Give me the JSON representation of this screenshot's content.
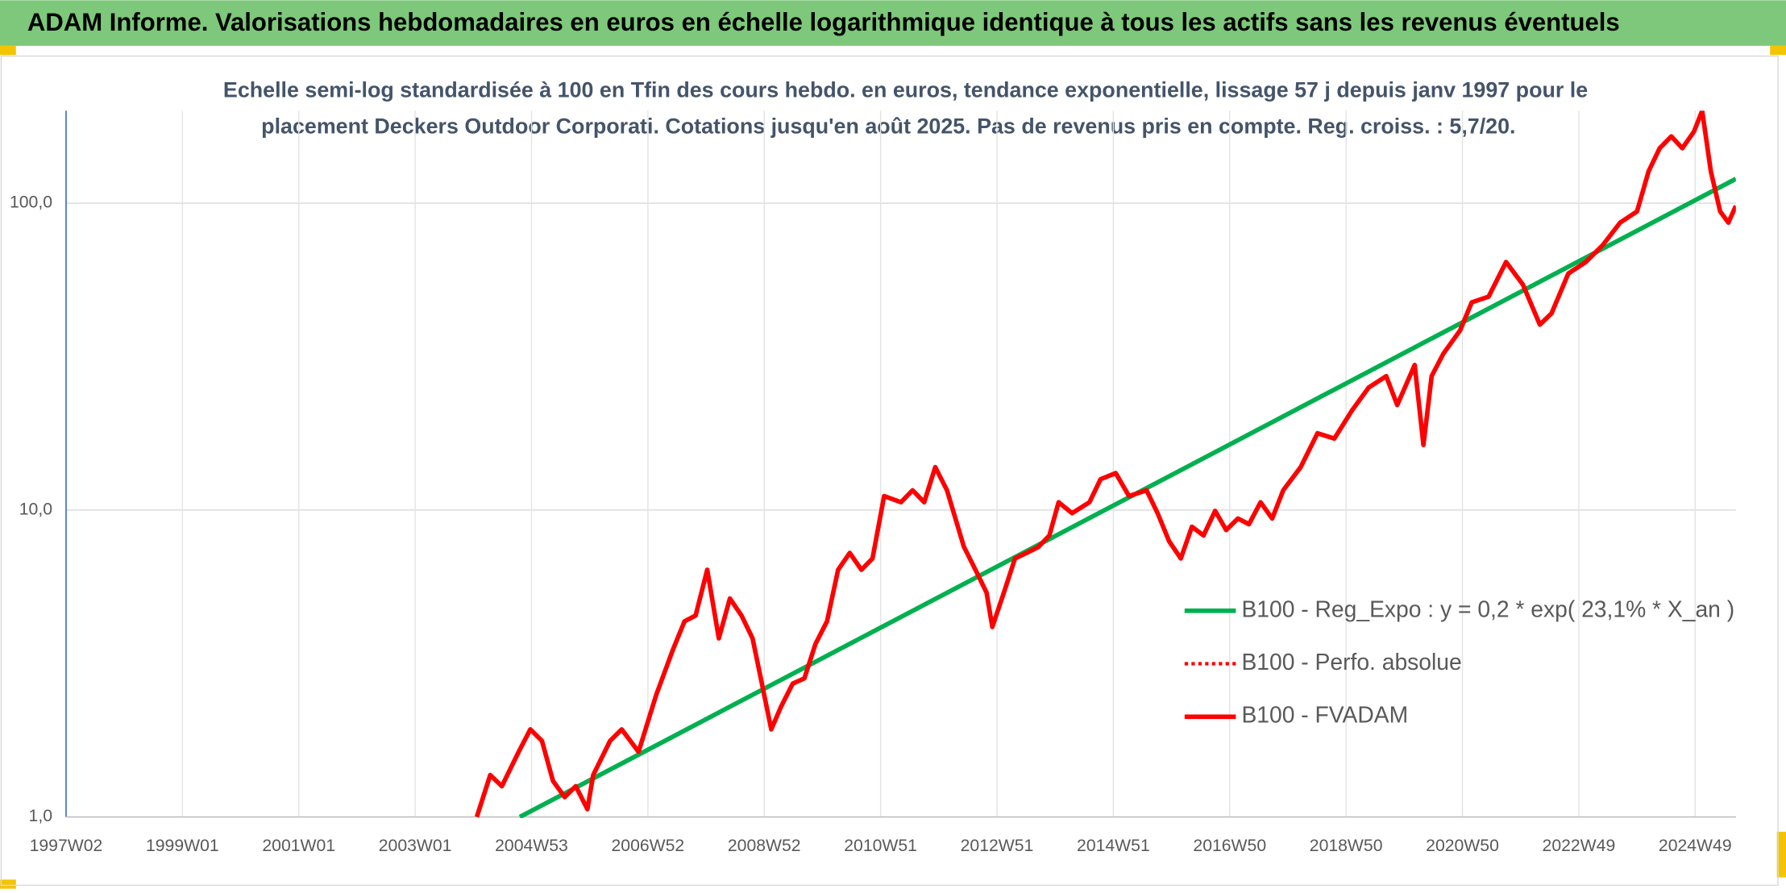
{
  "header": {
    "title": "ADAM Informe. Valorisations hebdomadaires en euros en échelle logarithmique identique à tous les actifs sans les revenus éventuels"
  },
  "chart_data": {
    "type": "line",
    "subtitle": [
      "Echelle semi-log standardisée à 100 en Tfin des cours hebdo. en euros, tendance exponentielle, lissage 57 j depuis janv 1997 pour le",
      "placement Deckers Outdoor Corporati. Cotations jusqu'en août 2025. Pas de revenus pris en compte. Reg. croiss. : 5,7/20."
    ],
    "log_y": true,
    "grid": true,
    "ylim": [
      1,
      200
    ],
    "yticks": [
      {
        "value": 1,
        "label": "1,0"
      },
      {
        "value": 10,
        "label": "10,0"
      },
      {
        "value": 100,
        "label": "100,0"
      }
    ],
    "xlim": [
      1997.0,
      2025.7
    ],
    "xticks": [
      {
        "value": 1997,
        "label": "1997W02"
      },
      {
        "value": 1999,
        "label": "1999W01"
      },
      {
        "value": 2001,
        "label": "2001W01"
      },
      {
        "value": 2003,
        "label": "2003W01"
      },
      {
        "value": 2005,
        "label": "2004W53"
      },
      {
        "value": 2007,
        "label": "2006W52"
      },
      {
        "value": 2009,
        "label": "2008W52"
      },
      {
        "value": 2011,
        "label": "2010W51"
      },
      {
        "value": 2013,
        "label": "2012W51"
      },
      {
        "value": 2015,
        "label": "2014W51"
      },
      {
        "value": 2017,
        "label": "2016W50"
      },
      {
        "value": 2019,
        "label": "2018W50"
      },
      {
        "value": 2021,
        "label": "2020W50"
      },
      {
        "value": 2023,
        "label": "2022W49"
      },
      {
        "value": 2025,
        "label": "2024W49"
      }
    ],
    "series": [
      {
        "name": "B100 - Reg_Expo : y = 0,2 * exp( 23,1% *  X_an )",
        "color": "#00b050",
        "x": [
          2004.8,
          2025.7
        ],
        "values": [
          1.0,
          120
        ]
      },
      {
        "name": "B100 - Perfo. absolue",
        "color": "#ff0000",
        "dash": "dotted"
      },
      {
        "name": "B100 - FVADAM",
        "color": "#ff0000",
        "x": [
          2004.06,
          2004.29,
          2004.49,
          2004.78,
          2004.98,
          2005.18,
          2005.37,
          2005.57,
          2005.76,
          2005.96,
          2006.06,
          2006.35,
          2006.55,
          2006.84,
          2007.14,
          2007.43,
          2007.63,
          2007.82,
          2008.02,
          2008.22,
          2008.41,
          2008.61,
          2008.8,
          2008.96,
          2009.12,
          2009.29,
          2009.49,
          2009.69,
          2009.88,
          2010.08,
          2010.27,
          2010.47,
          2010.67,
          2010.86,
          2011.06,
          2011.35,
          2011.55,
          2011.75,
          2011.94,
          2012.14,
          2012.43,
          2012.63,
          2012.82,
          2012.92,
          2013.12,
          2013.31,
          2013.51,
          2013.71,
          2013.9,
          2014.06,
          2014.29,
          2014.59,
          2014.78,
          2015.04,
          2015.27,
          2015.57,
          2015.76,
          2015.96,
          2016.16,
          2016.35,
          2016.55,
          2016.75,
          2016.94,
          2017.14,
          2017.33,
          2017.53,
          2017.73,
          2017.92,
          2018.22,
          2018.51,
          2018.8,
          2019.1,
          2019.39,
          2019.69,
          2019.88,
          2020.18,
          2020.33,
          2020.47,
          2020.67,
          2020.96,
          2021.16,
          2021.45,
          2021.75,
          2022.04,
          2022.33,
          2022.53,
          2022.82,
          2023.12,
          2023.41,
          2023.71,
          2024.0,
          2024.2,
          2024.39,
          2024.59,
          2024.78,
          2024.98,
          2025.12,
          2025.27,
          2025.43,
          2025.57,
          2025.7
        ],
        "values": [
          1.0,
          1.37,
          1.26,
          1.63,
          1.93,
          1.77,
          1.31,
          1.16,
          1.26,
          1.06,
          1.37,
          1.77,
          1.93,
          1.63,
          2.49,
          3.51,
          4.34,
          4.53,
          6.39,
          3.82,
          5.15,
          4.53,
          3.82,
          2.72,
          1.93,
          2.29,
          2.72,
          2.83,
          3.66,
          4.34,
          6.39,
          7.25,
          6.39,
          6.95,
          11.1,
          10.6,
          11.6,
          10.6,
          13.8,
          11.6,
          7.6,
          6.39,
          5.39,
          4.16,
          5.39,
          6.95,
          7.25,
          7.57,
          8.26,
          10.6,
          9.77,
          10.6,
          12.6,
          13.2,
          11.1,
          11.6,
          9.77,
          7.9,
          6.95,
          8.82,
          8.26,
          9.94,
          8.61,
          9.38,
          8.99,
          10.6,
          9.38,
          11.6,
          13.8,
          17.8,
          17.1,
          21.1,
          25.1,
          27.3,
          22.0,
          29.7,
          16.3,
          27.3,
          32.3,
          38.5,
          47.5,
          49.6,
          64.3,
          54.3,
          40.2,
          43.7,
          59.0,
          64.3,
          72.9,
          86.4,
          94.0,
          127,
          151,
          165,
          151,
          171,
          200,
          127,
          94,
          86.4,
          98
        ]
      }
    ]
  }
}
